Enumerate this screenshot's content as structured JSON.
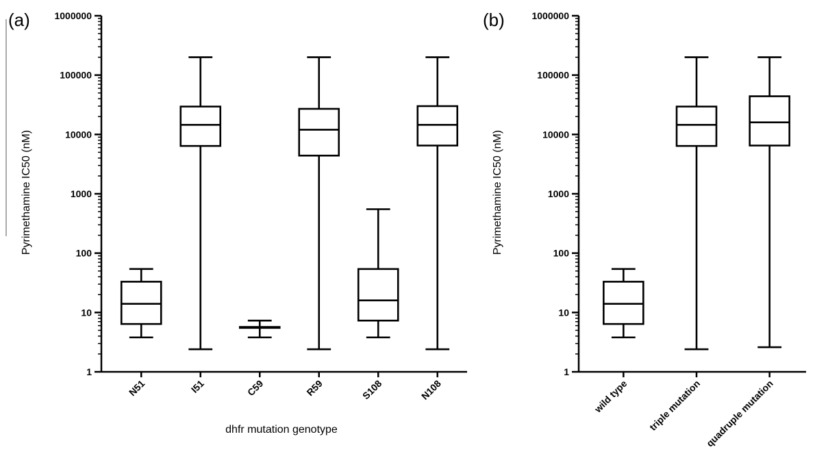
{
  "chart_data": [
    {
      "type": "box",
      "panel_label": "(a)",
      "xlabel": "dhfr mutation genotype",
      "ylabel": "Pyrimethamine IC50 (nM)",
      "yscale": "log",
      "ylim": [
        1,
        1000000
      ],
      "y_ticks": [
        "1",
        "10",
        "100",
        "1000",
        "10000",
        "100000",
        "1000000"
      ],
      "categories": [
        "N51",
        "I51",
        "C59",
        "R59",
        "S108",
        "N108"
      ],
      "boxes": [
        {
          "name": "N51",
          "min": 3.8,
          "q1": 6.4,
          "median": 14,
          "q3": 33,
          "max": 54
        },
        {
          "name": "I51",
          "min": 2.4,
          "q1": 6400,
          "median": 14500,
          "q3": 29500,
          "max": 200000
        },
        {
          "name": "C59",
          "min": 3.8,
          "q1": 5.5,
          "median": 5.6,
          "q3": 5.7,
          "max": 7.3
        },
        {
          "name": "R59",
          "min": 2.4,
          "q1": 4400,
          "median": 12000,
          "q3": 27000,
          "max": 200000
        },
        {
          "name": "S108",
          "min": 3.8,
          "q1": 7.3,
          "median": 16,
          "q3": 54,
          "max": 550
        },
        {
          "name": "N108",
          "min": 2.4,
          "q1": 6500,
          "median": 14500,
          "q3": 30000,
          "max": 200000
        }
      ]
    },
    {
      "type": "box",
      "panel_label": "(b)",
      "xlabel": "",
      "ylabel": "Pyrimethamine IC50 (nM)",
      "yscale": "log",
      "ylim": [
        1,
        1000000
      ],
      "y_ticks": [
        "1",
        "10",
        "100",
        "1000",
        "10000",
        "100000",
        "1000000"
      ],
      "categories": [
        "wild type",
        "triple mutation",
        "quadruple mutation"
      ],
      "boxes": [
        {
          "name": "wild type",
          "min": 3.8,
          "q1": 6.4,
          "median": 14,
          "q3": 33,
          "max": 54
        },
        {
          "name": "triple mutation",
          "min": 2.4,
          "q1": 6400,
          "median": 14500,
          "q3": 29500,
          "max": 200000
        },
        {
          "name": "quadruple mutation",
          "min": 2.6,
          "q1": 6500,
          "median": 16000,
          "q3": 44000,
          "max": 200000
        }
      ]
    }
  ]
}
